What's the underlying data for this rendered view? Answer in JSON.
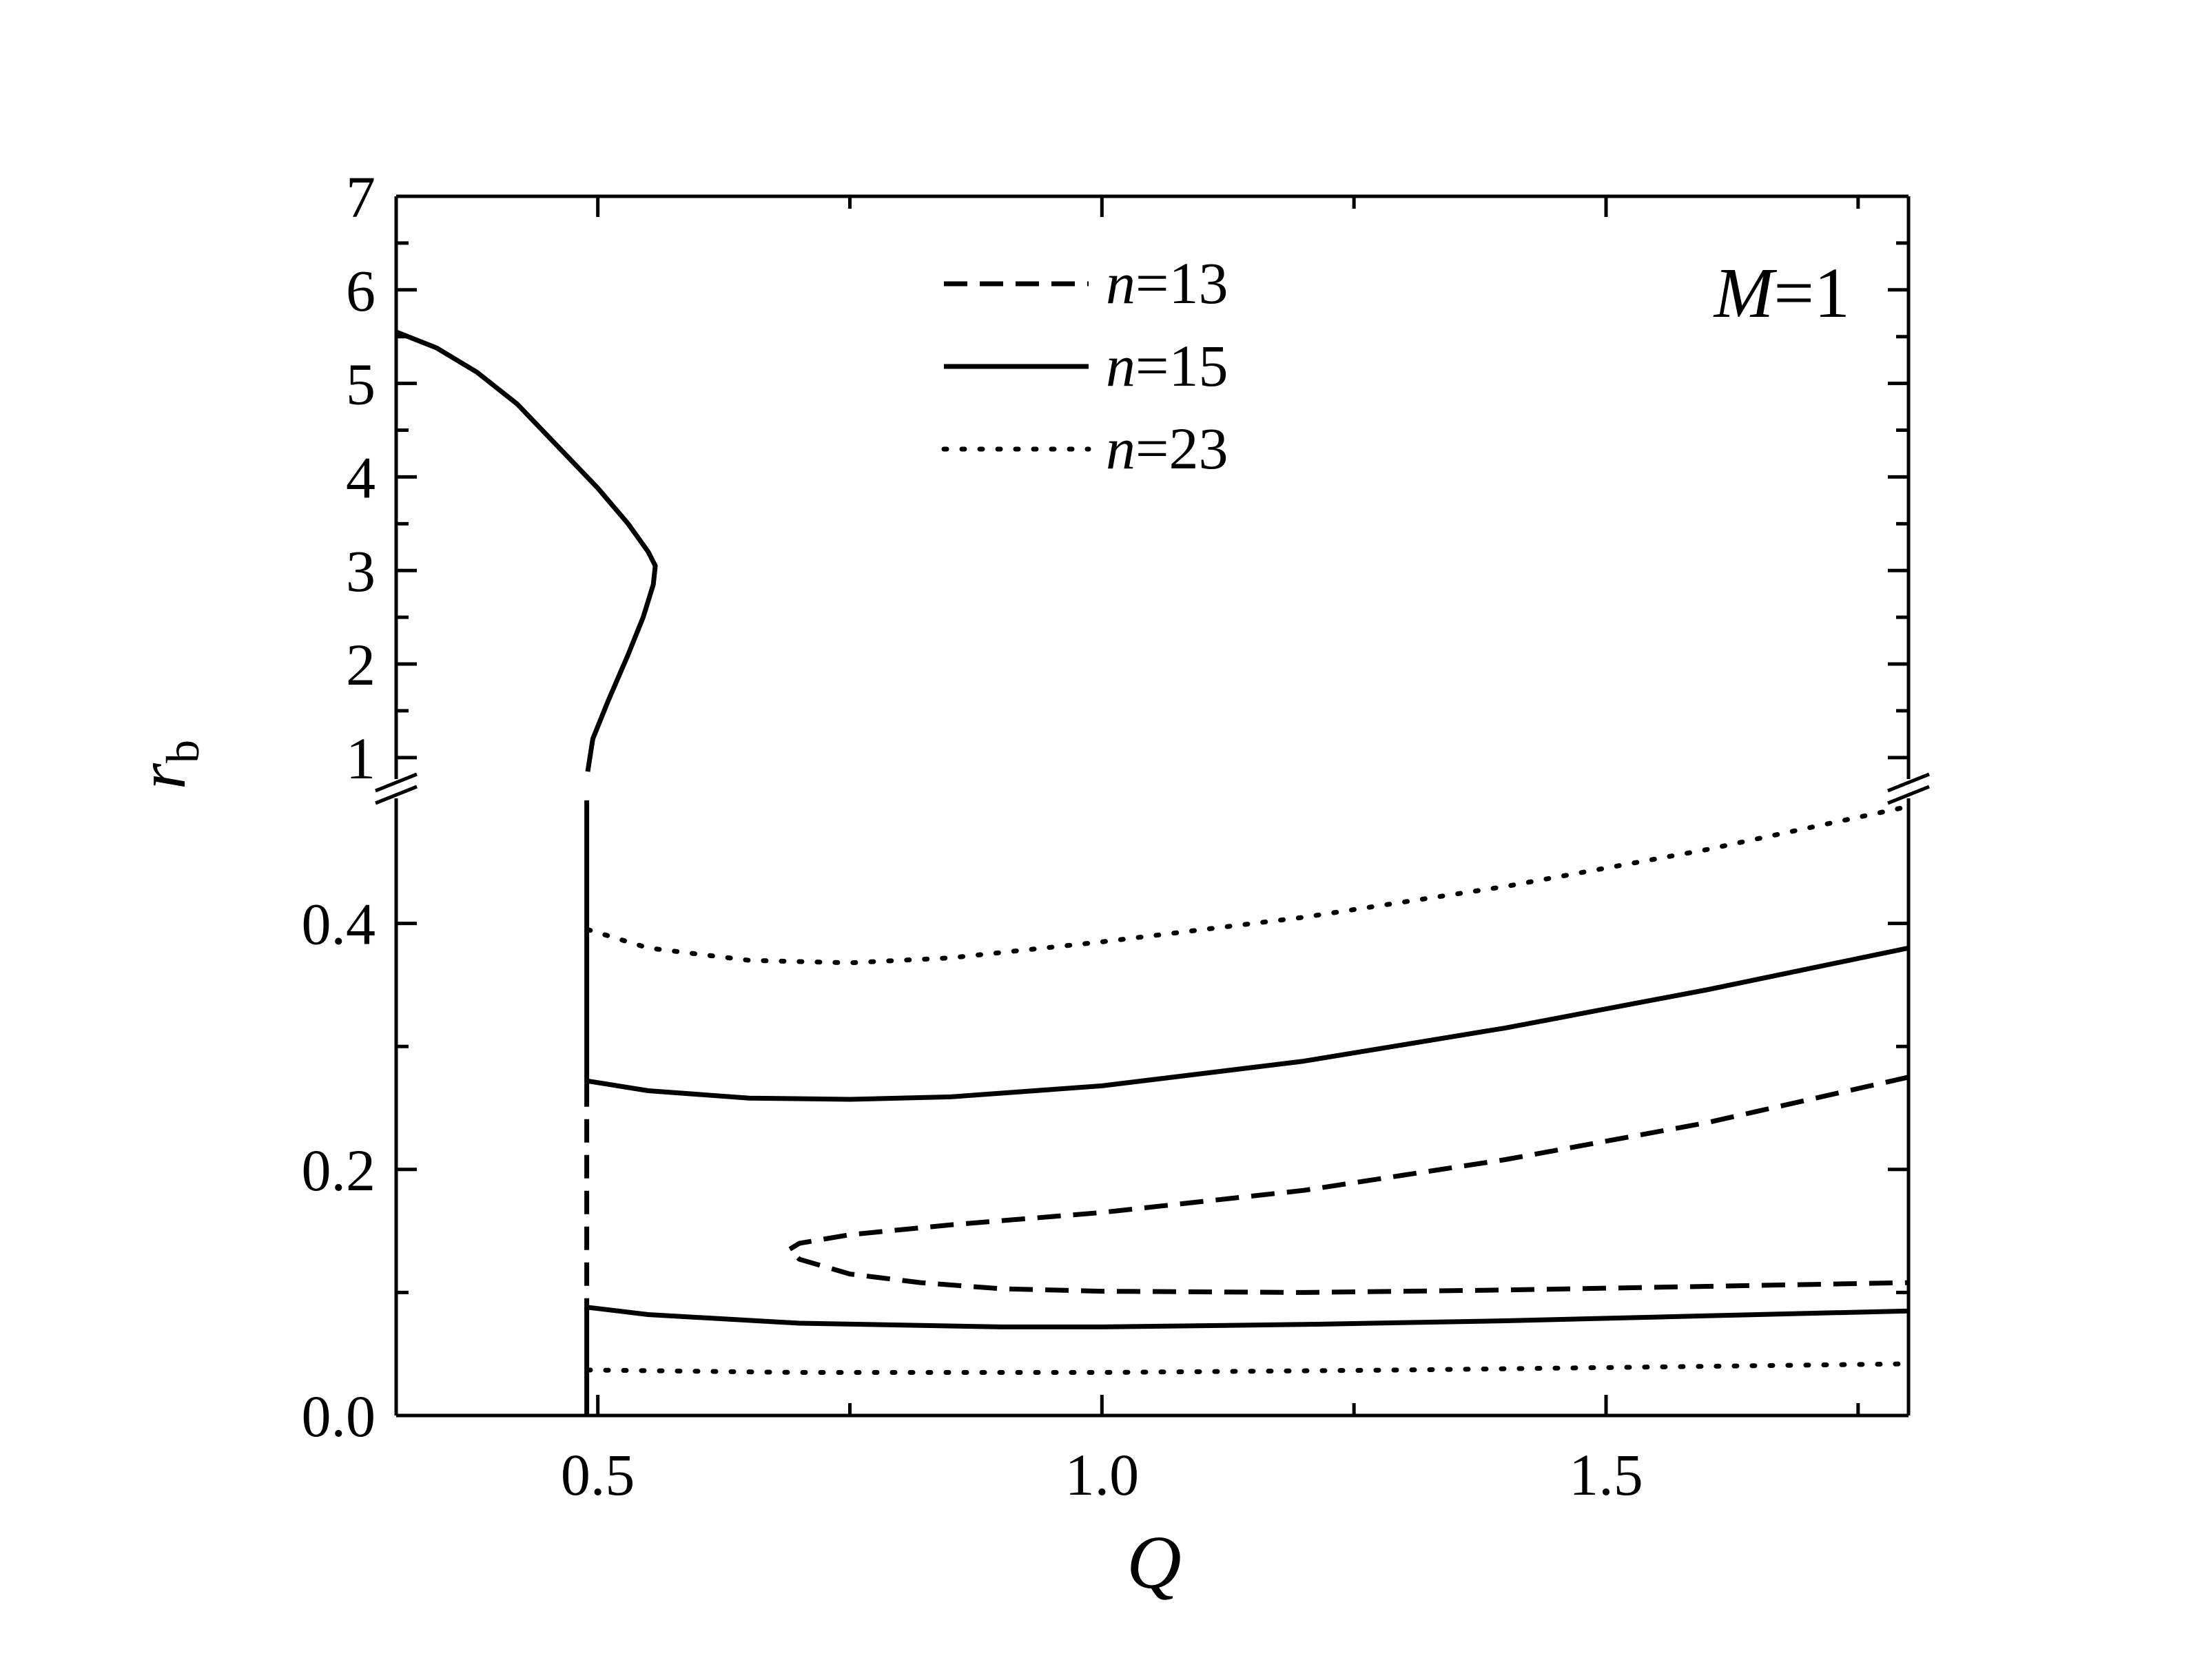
{
  "chart_data": {
    "type": "line",
    "annotation": {
      "var": "M",
      "eq": "=1"
    },
    "xlabel": "Q",
    "ylabel": {
      "main": "r",
      "sub": "b"
    },
    "xlim": [
      0.3,
      1.8
    ],
    "x_ticks": [
      "0.5",
      "1.0",
      "1.5"
    ],
    "y_upper_range": [
      0.8,
      7
    ],
    "y_upper_ticks": [
      "1",
      "2",
      "3",
      "4",
      "5",
      "6",
      "7"
    ],
    "y_lower_range": [
      0,
      0.5
    ],
    "y_lower_ticks": [
      "0.0",
      "0.2",
      "0.4"
    ],
    "axis_break": "between 0.5 and 0.8",
    "grid": false,
    "legend_position": "top-center",
    "legend": [
      {
        "var": "n",
        "eq": "=13",
        "style": "dashed"
      },
      {
        "var": "n",
        "eq": "=15",
        "style": "solid"
      },
      {
        "var": "n",
        "eq": "=23",
        "style": "dotted"
      }
    ],
    "series": [
      {
        "name": "n=15",
        "segment": "upper-branch",
        "style": "solid",
        "points": [
          [
            0.3,
            5.55
          ],
          [
            0.34,
            5.38
          ],
          [
            0.38,
            5.12
          ],
          [
            0.42,
            4.78
          ],
          [
            0.46,
            4.33
          ],
          [
            0.5,
            3.88
          ],
          [
            0.53,
            3.5
          ],
          [
            0.55,
            3.2
          ],
          [
            0.557,
            3.05
          ],
          [
            0.555,
            2.85
          ],
          [
            0.545,
            2.5
          ],
          [
            0.53,
            2.1
          ],
          [
            0.51,
            1.6
          ],
          [
            0.495,
            1.2
          ],
          [
            0.49,
            0.85
          ]
        ]
      },
      {
        "name": "n=15",
        "segment": "vertical-top",
        "style": "solid",
        "points": [
          [
            0.489,
            0.5
          ],
          [
            0.489,
            0.27
          ]
        ]
      },
      {
        "name": "n=15",
        "segment": "upper-lower",
        "style": "solid",
        "points": [
          [
            0.489,
            0.272
          ],
          [
            0.55,
            0.264
          ],
          [
            0.65,
            0.258
          ],
          [
            0.75,
            0.257
          ],
          [
            0.85,
            0.259
          ],
          [
            1.0,
            0.268
          ],
          [
            1.2,
            0.288
          ],
          [
            1.4,
            0.315
          ],
          [
            1.6,
            0.346
          ],
          [
            1.8,
            0.38
          ]
        ]
      },
      {
        "name": "n=15",
        "segment": "lower",
        "style": "solid",
        "points": [
          [
            0.489,
            0.088
          ],
          [
            0.55,
            0.082
          ],
          [
            0.7,
            0.075
          ],
          [
            0.9,
            0.072
          ],
          [
            1.0,
            0.072
          ],
          [
            1.2,
            0.074
          ],
          [
            1.4,
            0.077
          ],
          [
            1.6,
            0.081
          ],
          [
            1.8,
            0.085
          ]
        ]
      },
      {
        "name": "n=15",
        "segment": "vertical-bottom",
        "style": "solid",
        "points": [
          [
            0.489,
            0.088
          ],
          [
            0.489,
            0.0
          ]
        ]
      },
      {
        "name": "n=13",
        "segment": "vertical",
        "style": "dashed",
        "points": [
          [
            0.489,
            0.27
          ],
          [
            0.489,
            0.085
          ]
        ]
      },
      {
        "name": "n=13",
        "segment": "nose",
        "style": "dashed",
        "points": [
          [
            1.8,
            0.275
          ],
          [
            1.6,
            0.238
          ],
          [
            1.4,
            0.208
          ],
          [
            1.2,
            0.183
          ],
          [
            1.0,
            0.165
          ],
          [
            0.85,
            0.155
          ],
          [
            0.75,
            0.147
          ],
          [
            0.7,
            0.14
          ],
          [
            0.69,
            0.135
          ],
          [
            0.7,
            0.127
          ],
          [
            0.75,
            0.115
          ],
          [
            0.82,
            0.108
          ],
          [
            0.9,
            0.103
          ],
          [
            1.0,
            0.101
          ],
          [
            1.2,
            0.1
          ],
          [
            1.4,
            0.102
          ],
          [
            1.6,
            0.105
          ],
          [
            1.8,
            0.108
          ]
        ]
      },
      {
        "name": "n=23",
        "segment": "upper",
        "style": "dotted",
        "points": [
          [
            0.49,
            0.395
          ],
          [
            0.55,
            0.38
          ],
          [
            0.65,
            0.37
          ],
          [
            0.75,
            0.368
          ],
          [
            0.85,
            0.372
          ],
          [
            1.0,
            0.385
          ],
          [
            1.2,
            0.405
          ],
          [
            1.4,
            0.43
          ],
          [
            1.6,
            0.46
          ],
          [
            1.8,
            0.495
          ]
        ]
      },
      {
        "name": "n=23",
        "segment": "lower",
        "style": "dotted",
        "points": [
          [
            0.49,
            0.037
          ],
          [
            0.7,
            0.035
          ],
          [
            1.0,
            0.035
          ],
          [
            1.3,
            0.037
          ],
          [
            1.6,
            0.04
          ],
          [
            1.8,
            0.042
          ]
        ]
      }
    ]
  }
}
